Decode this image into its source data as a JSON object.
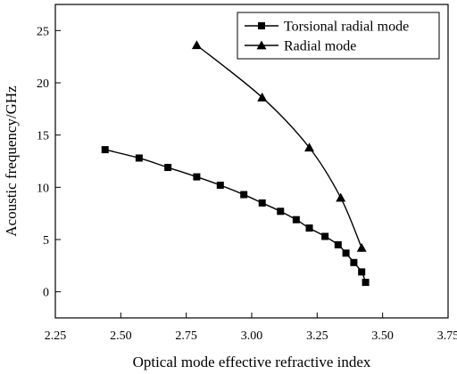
{
  "chart_data": {
    "type": "line",
    "xlabel": "Optical mode effective refractive index",
    "ylabel": "Acoustic frequency/GHz",
    "xlim": [
      2.25,
      3.75
    ],
    "ylim": [
      -2.5,
      27.5
    ],
    "x_ticks": [
      "2.25",
      "2.50",
      "2.75",
      "3.00",
      "3.25",
      "3.50",
      "3.75"
    ],
    "y_ticks": [
      "0",
      "5",
      "10",
      "15",
      "20",
      "25"
    ],
    "grid": false,
    "legend_position": "top-right",
    "series": [
      {
        "name": "Torsional radial mode",
        "marker": "square",
        "color": "#000000",
        "x": [
          2.44,
          2.57,
          2.68,
          2.79,
          2.88,
          2.97,
          3.04,
          3.11,
          3.17,
          3.22,
          3.28,
          3.33,
          3.36,
          3.39,
          3.42,
          3.435
        ],
        "y": [
          13.6,
          12.8,
          11.9,
          11.0,
          10.2,
          9.3,
          8.5,
          7.7,
          6.9,
          6.1,
          5.3,
          4.5,
          3.7,
          2.8,
          1.9,
          0.9
        ]
      },
      {
        "name": "Radial mode",
        "marker": "triangle",
        "color": "#000000",
        "x": [
          2.79,
          3.04,
          3.22,
          3.34,
          3.42
        ],
        "y": [
          23.6,
          18.6,
          13.8,
          9.0,
          4.2
        ]
      }
    ]
  }
}
